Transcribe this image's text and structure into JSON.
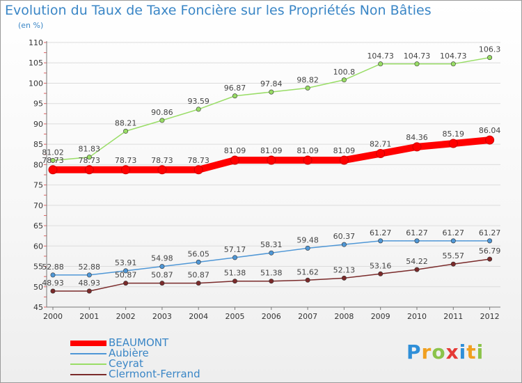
{
  "header": {
    "title": "Evolution du Taux de Taxe Foncière sur les Propriétés Non Bâties",
    "unit": "(en %)"
  },
  "logo": {
    "letters": [
      "P",
      "r",
      "o",
      "x",
      "i",
      "t",
      "i"
    ]
  },
  "chart_data": {
    "type": "line",
    "title": "Evolution du Taux de Taxe Foncière sur les Propriétés Non Bâties",
    "subtitle": "(en %)",
    "xlabel": "",
    "ylabel": "",
    "ylim": [
      45,
      110
    ],
    "yticks": [
      45,
      50,
      55,
      60,
      65,
      70,
      75,
      80,
      85,
      90,
      95,
      100,
      105,
      110
    ],
    "x": [
      "2000",
      "2001",
      "2002",
      "2003",
      "2004",
      "2005",
      "2006",
      "2007",
      "2008",
      "2009",
      "2010",
      "2011",
      "2012"
    ],
    "grid": true,
    "legend_position": "bottom-left",
    "series": [
      {
        "name": "BEAUMONT",
        "color": "#ff0000",
        "labels": [
          "78.73",
          "78.73",
          "78.73",
          "78.73",
          "78.73",
          "81.09",
          "81.09",
          "81.09",
          "81.09",
          "82.71",
          "84.36",
          "85.19",
          "86.04"
        ],
        "values": [
          78.73,
          78.73,
          78.73,
          78.73,
          78.73,
          81.09,
          81.09,
          81.09,
          81.09,
          82.71,
          84.36,
          85.19,
          86.04
        ]
      },
      {
        "name": "Aubière",
        "color": "#4f97d6",
        "labels": [
          "52.88",
          "52.88",
          "53.91",
          "54.98",
          "56.05",
          "57.17",
          "58.31",
          "59.48",
          "60.37",
          "61.27",
          "61.27",
          "61.27",
          "61.27"
        ],
        "values": [
          52.88,
          52.88,
          53.91,
          54.98,
          56.05,
          57.17,
          58.31,
          59.48,
          60.37,
          61.27,
          61.27,
          61.27,
          61.27
        ]
      },
      {
        "name": "Ceyrat",
        "color": "#99dd66",
        "labels": [
          "81.02",
          "81.83",
          "88.21",
          "90.86",
          "93.59",
          "96.87",
          "97.84",
          "98.82",
          "100.8",
          "104.73",
          "104.73",
          "104.73",
          "106.3"
        ],
        "values": [
          81.02,
          81.83,
          88.21,
          90.86,
          93.59,
          96.87,
          97.84,
          98.82,
          100.8,
          104.73,
          104.73,
          104.73,
          106.3
        ]
      },
      {
        "name": "Clermont-Ferrand",
        "color": "#7a2a2a",
        "labels": [
          "48.93",
          "48.93",
          "50.87",
          "50.87",
          "50.87",
          "51.38",
          "51.38",
          "51.62",
          "52.13",
          "53.16",
          "54.22",
          "55.57",
          "56.79"
        ],
        "values": [
          48.93,
          48.93,
          50.87,
          50.87,
          50.87,
          51.38,
          51.38,
          51.62,
          52.13,
          53.16,
          54.22,
          55.57,
          56.79
        ]
      }
    ]
  }
}
